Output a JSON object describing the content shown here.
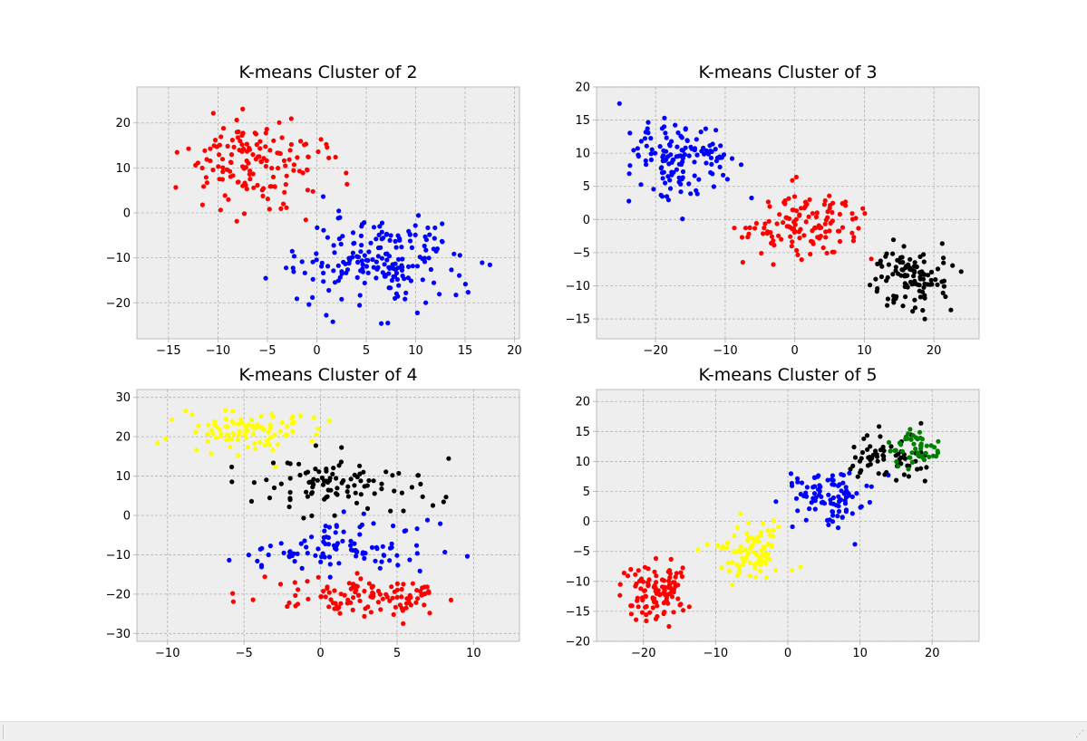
{
  "chart_data": [
    {
      "type": "scatter",
      "title": "K-means Cluster of 2",
      "xlim": [
        -18.2,
        20.5
      ],
      "ylim": [
        -28,
        28
      ],
      "xticks": [
        -15,
        -10,
        -5,
        0,
        5,
        10,
        15,
        20
      ],
      "yticks": [
        -20,
        -10,
        0,
        10,
        20
      ],
      "grid": true,
      "series": [
        {
          "color": "#ff0000",
          "center": [
            -6.6,
            11.5
          ],
          "spread": [
            4.8,
            6.8
          ],
          "count": 150,
          "bounds": [
            [
              -17,
              5
            ],
            [
              -4,
              26
            ]
          ]
        },
        {
          "color": "#0000ff",
          "center": [
            6.0,
            -11.2
          ],
          "spread": [
            5.4,
            6.5
          ],
          "count": 200,
          "bounds": [
            [
              -9,
              19
            ],
            [
              -25,
              6
            ]
          ]
        }
      ]
    },
    {
      "type": "scatter",
      "title": "K-means Cluster of 3",
      "xlim": [
        -28.5,
        26.5
      ],
      "ylim": [
        -18,
        20
      ],
      "xticks": [
        -20,
        -10,
        0,
        10,
        20
      ],
      "yticks": [
        -15,
        -10,
        -5,
        0,
        5,
        10,
        15,
        20
      ],
      "grid": true,
      "series": [
        {
          "color": "#0000ff",
          "center": [
            -16.5,
            8.5
          ],
          "spread": [
            5.0,
            4.5
          ],
          "count": 140,
          "bounds": [
            [
              -26,
              -6
            ],
            [
              0,
              18
            ]
          ]
        },
        {
          "color": "#ff0000",
          "center": [
            1.0,
            -0.8
          ],
          "spread": [
            6.0,
            3.3
          ],
          "count": 130,
          "bounds": [
            [
              -9,
              14
            ],
            [
              -10,
              9
            ]
          ]
        },
        {
          "color": "#000000",
          "center": [
            16.5,
            -8.6
          ],
          "spread": [
            3.8,
            3.6
          ],
          "count": 110,
          "bounds": [
            [
              9,
              24
            ],
            [
              -16,
              0
            ]
          ]
        }
      ]
    },
    {
      "type": "scatter",
      "title": "K-means Cluster of 4",
      "xlim": [
        -12,
        13
      ],
      "ylim": [
        -32,
        32
      ],
      "xticks": [
        -10,
        -5,
        0,
        5,
        10
      ],
      "yticks": [
        -30,
        -20,
        -10,
        0,
        10,
        20,
        30
      ],
      "grid": true,
      "series": [
        {
          "color": "#ffff00",
          "center": [
            -4.5,
            21.5
          ],
          "spread": [
            3.3,
            3.8
          ],
          "count": 95,
          "bounds": [
            [
              -11,
              4
            ],
            [
              11,
              29
            ]
          ]
        },
        {
          "color": "#000000",
          "center": [
            1.0,
            8.0
          ],
          "spread": [
            4.0,
            4.3
          ],
          "count": 100,
          "bounds": [
            [
              -11,
              9
            ],
            [
              -1,
              19
            ]
          ]
        },
        {
          "color": "#0000ff",
          "center": [
            1.5,
            -8.0
          ],
          "spread": [
            4.3,
            4.6
          ],
          "count": 100,
          "bounds": [
            [
              -8,
              10
            ],
            [
              -17,
              5
            ]
          ]
        },
        {
          "color": "#ff0000",
          "center": [
            3.0,
            -20.5
          ],
          "spread": [
            3.8,
            3.4
          ],
          "count": 115,
          "bounds": [
            [
              -6,
              12
            ],
            [
              -29,
              -10
            ]
          ]
        }
      ]
    },
    {
      "type": "scatter",
      "title": "K-means Cluster of 5",
      "xlim": [
        -26.5,
        26.5
      ],
      "ylim": [
        -20,
        22
      ],
      "xticks": [
        -20,
        -10,
        0,
        10,
        20
      ],
      "yticks": [
        -20,
        -15,
        -10,
        -5,
        0,
        5,
        10,
        15,
        20
      ],
      "grid": true,
      "series": [
        {
          "color": "#ff0000",
          "center": [
            -18.0,
            -11.5
          ],
          "spread": [
            3.2,
            3.2
          ],
          "count": 110,
          "bounds": [
            [
              -24,
              -12
            ],
            [
              -18,
              -5
            ]
          ]
        },
        {
          "color": "#ffff00",
          "center": [
            -5.0,
            -5.0
          ],
          "spread": [
            3.5,
            3.5
          ],
          "count": 90,
          "bounds": [
            [
              -13,
              3
            ],
            [
              -15,
              2
            ]
          ]
        },
        {
          "color": "#0000ff",
          "center": [
            5.5,
            4.0
          ],
          "spread": [
            3.8,
            3.5
          ],
          "count": 95,
          "bounds": [
            [
              -2,
              14
            ],
            [
              -5,
              13
            ]
          ]
        },
        {
          "color": "#000000",
          "center": [
            13.5,
            10.5
          ],
          "spread": [
            3.4,
            2.8
          ],
          "count": 65,
          "bounds": [
            [
              7,
              25
            ],
            [
              3,
              20
            ]
          ]
        },
        {
          "color": "#008000",
          "center": [
            18.0,
            11.5
          ],
          "spread": [
            2.4,
            2.4
          ],
          "count": 50,
          "bounds": [
            [
              14,
              23
            ],
            [
              6,
              19
            ]
          ]
        }
      ]
    }
  ]
}
